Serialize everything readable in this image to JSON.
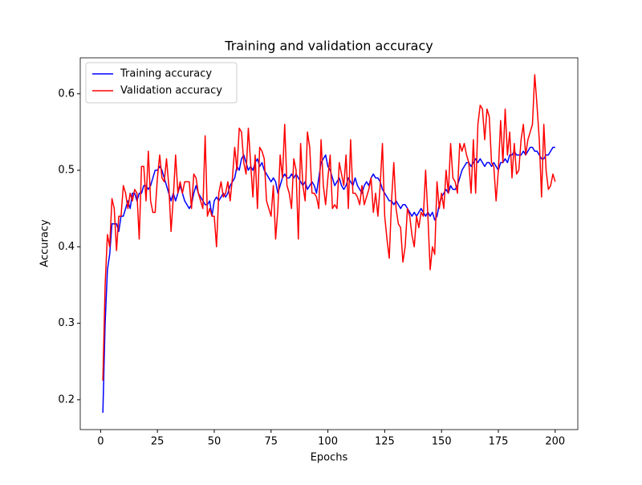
{
  "chart_data": {
    "type": "line",
    "title": "Training and validation accuracy",
    "xlabel": "Epochs",
    "ylabel": "Accuracy",
    "x": [
      1,
      2,
      3,
      4,
      5,
      6,
      7,
      8,
      9,
      10,
      11,
      12,
      13,
      14,
      15,
      16,
      17,
      18,
      19,
      20,
      21,
      22,
      23,
      24,
      25,
      26,
      27,
      28,
      29,
      30,
      31,
      32,
      33,
      34,
      35,
      36,
      37,
      38,
      39,
      40,
      41,
      42,
      43,
      44,
      45,
      46,
      47,
      48,
      49,
      50,
      51,
      52,
      53,
      54,
      55,
      56,
      57,
      58,
      59,
      60,
      61,
      62,
      63,
      64,
      65,
      66,
      67,
      68,
      69,
      70,
      71,
      72,
      73,
      74,
      75,
      76,
      77,
      78,
      79,
      80,
      81,
      82,
      83,
      84,
      85,
      86,
      87,
      88,
      89,
      90,
      91,
      92,
      93,
      94,
      95,
      96,
      97,
      98,
      99,
      100,
      101,
      102,
      103,
      104,
      105,
      106,
      107,
      108,
      109,
      110,
      111,
      112,
      113,
      114,
      115,
      116,
      117,
      118,
      119,
      120,
      121,
      122,
      123,
      124,
      125,
      126,
      127,
      128,
      129,
      130,
      131,
      132,
      133,
      134,
      135,
      136,
      137,
      138,
      139,
      140,
      141,
      142,
      143,
      144,
      145,
      146,
      147,
      148,
      149,
      150,
      151,
      152,
      153,
      154,
      155,
      156,
      157,
      158,
      159,
      160,
      161,
      162,
      163,
      164,
      165,
      166,
      167,
      168,
      169,
      170,
      171,
      172,
      173,
      174,
      175,
      176,
      177,
      178,
      179,
      180,
      181,
      182,
      183,
      184,
      185,
      186,
      187,
      188,
      189,
      190,
      191,
      192,
      193,
      194,
      195,
      196,
      197,
      198,
      199,
      200
    ],
    "series": [
      {
        "name": "Training accuracy",
        "color": "#0000ff",
        "values": [
          0.183,
          0.3,
          0.37,
          0.39,
          0.43,
          0.43,
          0.43,
          0.42,
          0.44,
          0.44,
          0.45,
          0.46,
          0.45,
          0.47,
          0.47,
          0.46,
          0.47,
          0.47,
          0.48,
          0.48,
          0.475,
          0.48,
          0.49,
          0.5,
          0.5,
          0.505,
          0.5,
          0.49,
          0.48,
          0.47,
          0.46,
          0.47,
          0.46,
          0.47,
          0.48,
          0.47,
          0.46,
          0.455,
          0.45,
          0.455,
          0.47,
          0.48,
          0.47,
          0.465,
          0.46,
          0.455,
          0.455,
          0.46,
          0.44,
          0.46,
          0.465,
          0.46,
          0.465,
          0.47,
          0.465,
          0.47,
          0.48,
          0.485,
          0.49,
          0.505,
          0.5,
          0.515,
          0.52,
          0.51,
          0.5,
          0.505,
          0.5,
          0.51,
          0.515,
          0.505,
          0.51,
          0.5,
          0.495,
          0.49,
          0.485,
          0.49,
          0.485,
          0.47,
          0.48,
          0.49,
          0.495,
          0.49,
          0.49,
          0.495,
          0.49,
          0.495,
          0.49,
          0.485,
          0.48,
          0.485,
          0.475,
          0.48,
          0.485,
          0.48,
          0.47,
          0.49,
          0.51,
          0.515,
          0.52,
          0.505,
          0.5,
          0.49,
          0.48,
          0.485,
          0.49,
          0.48,
          0.475,
          0.48,
          0.49,
          0.485,
          0.48,
          0.49,
          0.48,
          0.475,
          0.47,
          0.48,
          0.485,
          0.48,
          0.49,
          0.495,
          0.49,
          0.49,
          0.485,
          0.475,
          0.47,
          0.465,
          0.46,
          0.46,
          0.455,
          0.46,
          0.455,
          0.45,
          0.455,
          0.455,
          0.45,
          0.445,
          0.44,
          0.445,
          0.44,
          0.445,
          0.45,
          0.445,
          0.44,
          0.445,
          0.44,
          0.445,
          0.435,
          0.44,
          0.455,
          0.465,
          0.47,
          0.475,
          0.47,
          0.48,
          0.475,
          0.475,
          0.48,
          0.49,
          0.5,
          0.505,
          0.51,
          0.51,
          0.505,
          0.51,
          0.515,
          0.51,
          0.515,
          0.51,
          0.505,
          0.51,
          0.51,
          0.505,
          0.51,
          0.505,
          0.5,
          0.51,
          0.51,
          0.515,
          0.51,
          0.52,
          0.52,
          0.525,
          0.52,
          0.52,
          0.52,
          0.525,
          0.52,
          0.525,
          0.53,
          0.53,
          0.525,
          0.525,
          0.52,
          0.515,
          0.515,
          0.52,
          0.52,
          0.525,
          0.53,
          0.53
        ]
      },
      {
        "name": "Validation accuracy",
        "color": "#ff0000",
        "values": [
          0.225,
          0.35,
          0.416,
          0.4,
          0.463,
          0.45,
          0.395,
          0.44,
          0.44,
          0.48,
          0.47,
          0.45,
          0.47,
          0.46,
          0.475,
          0.47,
          0.41,
          0.505,
          0.505,
          0.46,
          0.525,
          0.46,
          0.445,
          0.445,
          0.49,
          0.52,
          0.49,
          0.485,
          0.515,
          0.48,
          0.42,
          0.465,
          0.52,
          0.47,
          0.485,
          0.47,
          0.485,
          0.485,
          0.485,
          0.45,
          0.495,
          0.49,
          0.47,
          0.46,
          0.45,
          0.545,
          0.44,
          0.45,
          0.44,
          0.44,
          0.4,
          0.47,
          0.485,
          0.465,
          0.47,
          0.485,
          0.46,
          0.49,
          0.53,
          0.5,
          0.555,
          0.55,
          0.51,
          0.495,
          0.555,
          0.51,
          0.465,
          0.52,
          0.45,
          0.53,
          0.525,
          0.515,
          0.46,
          0.45,
          0.44,
          0.48,
          0.41,
          0.45,
          0.52,
          0.49,
          0.56,
          0.48,
          0.47,
          0.45,
          0.515,
          0.5,
          0.41,
          0.535,
          0.48,
          0.46,
          0.55,
          0.53,
          0.47,
          0.47,
          0.465,
          0.45,
          0.54,
          0.48,
          0.455,
          0.49,
          0.52,
          0.45,
          0.455,
          0.45,
          0.51,
          0.495,
          0.48,
          0.52,
          0.45,
          0.54,
          0.47,
          0.47,
          0.465,
          0.455,
          0.48,
          0.455,
          0.465,
          0.475,
          0.49,
          0.445,
          0.47,
          0.44,
          0.48,
          0.535,
          0.44,
          0.41,
          0.385,
          0.46,
          0.51,
          0.45,
          0.43,
          0.425,
          0.38,
          0.4,
          0.45,
          0.44,
          0.415,
          0.4,
          0.44,
          0.425,
          0.445,
          0.44,
          0.5,
          0.44,
          0.37,
          0.4,
          0.39,
          0.485,
          0.45,
          0.47,
          0.45,
          0.5,
          0.47,
          0.535,
          0.49,
          0.485,
          0.47,
          0.535,
          0.525,
          0.535,
          0.52,
          0.51,
          0.47,
          0.54,
          0.47,
          0.56,
          0.585,
          0.58,
          0.54,
          0.58,
          0.57,
          0.51,
          0.505,
          0.46,
          0.5,
          0.565,
          0.51,
          0.58,
          0.52,
          0.55,
          0.49,
          0.535,
          0.495,
          0.5,
          0.54,
          0.56,
          0.52,
          0.54,
          0.55,
          0.56,
          0.625,
          0.585,
          0.54,
          0.465,
          0.56,
          0.5,
          0.475,
          0.48,
          0.495,
          0.485
        ]
      }
    ],
    "xlim": [
      -8.95,
      209.95
    ],
    "ylim": [
      0.161,
      0.647
    ],
    "xticks": [
      0,
      25,
      50,
      75,
      100,
      125,
      150,
      175,
      200
    ],
    "yticks": [
      0.2,
      0.3,
      0.4,
      0.5,
      0.6
    ],
    "legend": "upper left"
  }
}
